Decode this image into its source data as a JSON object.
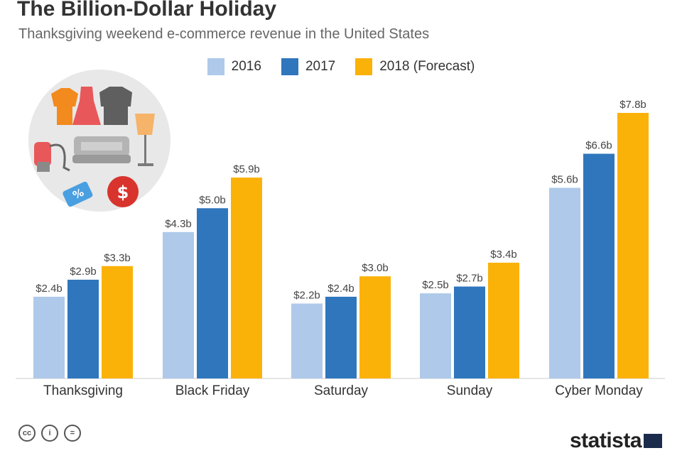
{
  "header": {
    "title": "The Billion-Dollar Holiday",
    "subtitle": "Thanksgiving weekend e-commerce revenue in the United States"
  },
  "chart_data": {
    "type": "bar",
    "title": "The Billion-Dollar Holiday",
    "subtitle": "Thanksgiving weekend e-commerce revenue in the United States",
    "categories": [
      "Thanksgiving",
      "Black Friday",
      "Saturday",
      "Sunday",
      "Cyber Monday"
    ],
    "series": [
      {
        "name": "2016",
        "color": "#aec9ea",
        "values": [
          2.4,
          4.3,
          2.2,
          2.5,
          5.6
        ],
        "labels": [
          "$2.4b",
          "$4.3b",
          "$2.2b",
          "$2.5b",
          "$5.6b"
        ]
      },
      {
        "name": "2017",
        "color": "#2f76bd",
        "values": [
          2.9,
          5.0,
          2.4,
          2.7,
          6.6
        ],
        "labels": [
          "$2.9b",
          "$5.0b",
          "$2.4b",
          "$2.7b",
          "$6.6b"
        ]
      },
      {
        "name": "2018 (Forecast)",
        "color": "#fbb208",
        "values": [
          3.3,
          5.9,
          3.0,
          3.4,
          7.8
        ],
        "labels": [
          "$3.3b",
          "$5.9b",
          "$3.0b",
          "$3.4b",
          "$7.8b"
        ]
      }
    ],
    "xlabel": "",
    "ylabel": "",
    "ylim": [
      0,
      7.8
    ],
    "grid": false,
    "legend": "top-center"
  },
  "footer": {
    "license_icons": [
      "cc-icon",
      "by-icon",
      "nd-icon"
    ],
    "license_glyphs": [
      "cc",
      "i",
      "="
    ],
    "brand": "statista"
  }
}
